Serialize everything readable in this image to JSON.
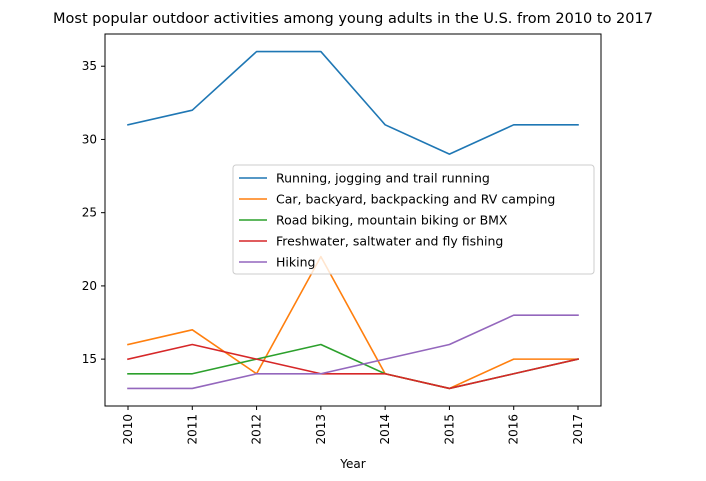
{
  "chart_data": {
    "type": "line",
    "title": "Most popular outdoor activities among young adults in the U.S. from 2010 to 2017",
    "xlabel": "Year",
    "ylabel": "",
    "categories": [
      "2010",
      "2011",
      "2012",
      "2013",
      "2014",
      "2015",
      "2016",
      "2017"
    ],
    "ylim": [
      11.8,
      37.2
    ],
    "yticks": [
      15,
      20,
      25,
      30,
      35
    ],
    "grid": false,
    "legend_position": "center-right",
    "series": [
      {
        "name": "Running, jogging and trail running",
        "color": "#1f77b4",
        "values": [
          31,
          32,
          36,
          36,
          31,
          29,
          31,
          31
        ]
      },
      {
        "name": "Car, backyard, backpacking and RV camping",
        "color": "#ff7f0e",
        "values": [
          16,
          17,
          14,
          22,
          14,
          13,
          15,
          15
        ]
      },
      {
        "name": "Road biking, mountain biking or BMX",
        "color": "#2ca02c",
        "values": [
          14,
          14,
          15,
          16,
          14,
          13,
          14,
          15
        ]
      },
      {
        "name": "Freshwater, saltwater and fly fishing",
        "color": "#d62728",
        "values": [
          15,
          16,
          15,
          14,
          14,
          13,
          14,
          15
        ]
      },
      {
        "name": "Hiking",
        "color": "#9467bd",
        "values": [
          13,
          13,
          14,
          14,
          15,
          16,
          18,
          18
        ]
      }
    ]
  }
}
